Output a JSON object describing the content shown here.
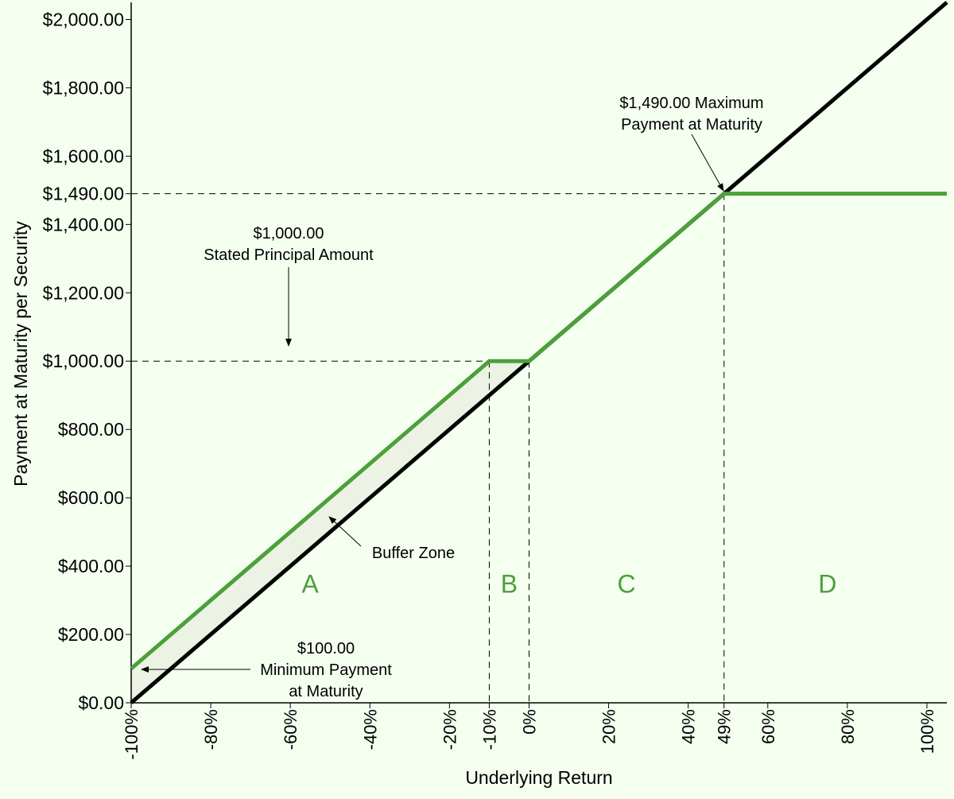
{
  "chart_data": {
    "type": "line",
    "xlabel": "Underlying Return",
    "ylabel": "Payment at Maturity per Security",
    "xlim": [
      -100,
      105
    ],
    "ylim": [
      0,
      2050
    ],
    "x_ticks": [
      {
        "value": -100,
        "label": "-100%"
      },
      {
        "value": -80,
        "label": "-80%"
      },
      {
        "value": -60,
        "label": "-60%"
      },
      {
        "value": -40,
        "label": "-40%"
      },
      {
        "value": -20,
        "label": "-20%"
      },
      {
        "value": -10,
        "label": "-10%"
      },
      {
        "value": 0,
        "label": "0%"
      },
      {
        "value": 20,
        "label": "20%"
      },
      {
        "value": 40,
        "label": "40%"
      },
      {
        "value": 49,
        "label": "49%"
      },
      {
        "value": 60,
        "label": "60%"
      },
      {
        "value": 80,
        "label": "80%"
      },
      {
        "value": 100,
        "label": "100%"
      }
    ],
    "y_ticks": [
      {
        "value": 0,
        "label": "$0.00"
      },
      {
        "value": 200,
        "label": "$200.00"
      },
      {
        "value": 400,
        "label": "$400.00"
      },
      {
        "value": 600,
        "label": "$600.00"
      },
      {
        "value": 800,
        "label": "$800.00"
      },
      {
        "value": 1000,
        "label": "$1,000.00"
      },
      {
        "value": 1200,
        "label": "$1,200.00"
      },
      {
        "value": 1400,
        "label": "$1,400.00"
      },
      {
        "value": 1490,
        "label": "$1,490.00"
      },
      {
        "value": 1600,
        "label": "$1,600.00"
      },
      {
        "value": 1800,
        "label": "$1,800.00"
      },
      {
        "value": 2000,
        "label": "$2,000.00"
      }
    ],
    "series": [
      {
        "color": "#000000",
        "points": [
          [
            -100,
            0
          ],
          [
            105,
            2050
          ]
        ]
      },
      {
        "color": "#4ca03a",
        "points": [
          [
            -100,
            100
          ],
          [
            -10,
            1000
          ],
          [
            0,
            1000
          ],
          [
            49,
            1490
          ],
          [
            105,
            1490
          ]
        ]
      }
    ],
    "buffer_zone": {
      "fill": "#edf3e4",
      "polygon": [
        [
          -100,
          100
        ],
        [
          -10,
          1000
        ],
        [
          0,
          1000
        ],
        [
          -100,
          0
        ]
      ]
    },
    "reference_lines": {
      "horizontal": [
        1000,
        1490
      ],
      "vertical": [
        -10,
        0,
        49
      ]
    },
    "regions": [
      {
        "label": "A",
        "x": -55,
        "y": 350
      },
      {
        "label": "B",
        "x": -5,
        "y": 350
      },
      {
        "label": "C",
        "x": 24.5,
        "y": 350
      },
      {
        "label": "D",
        "x": 75,
        "y": 350
      }
    ],
    "annotations": [
      {
        "name": "max-payment",
        "lines": [
          "$1,490.00 Maximum",
          "Payment at Maturity"
        ]
      },
      {
        "name": "stated-principal",
        "lines": [
          "$1,000.00",
          "Stated Principal Amount"
        ]
      },
      {
        "name": "buffer-zone",
        "lines": [
          "Buffer Zone"
        ]
      },
      {
        "name": "min-payment",
        "lines": [
          "$100.00",
          "Minimum Payment",
          "at Maturity"
        ]
      }
    ],
    "colors": {
      "background": "#f5fff0",
      "accent": "#4ca03a",
      "reference": "#000000"
    }
  }
}
